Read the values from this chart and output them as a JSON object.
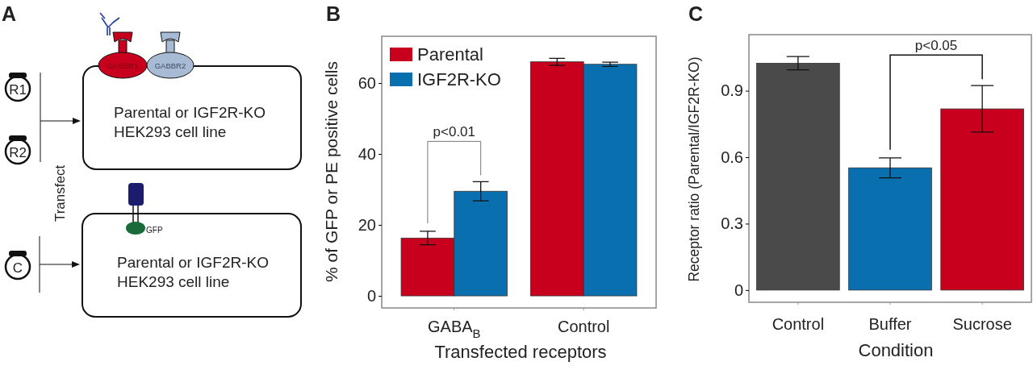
{
  "chart_data": [
    {
      "type": "other",
      "title": "A",
      "annotations": [
        "GABBR1",
        "GABBR2",
        "R1",
        "R2",
        "C",
        "Transfect",
        "Parental or IGF2R-KO",
        "HEK293 cell line",
        "GFP",
        "Parental or IGF2R-KO",
        "HEK293 cell line"
      ]
    },
    {
      "type": "bar",
      "title": "B",
      "xlabel": "Transfected receptors",
      "ylabel": "% of GFP or PE positive cells",
      "categories": [
        "GABA$_{B}$",
        "Control"
      ],
      "ylim": [
        -3.4,
        73.2
      ],
      "yticks": [
        0,
        20,
        40,
        60
      ],
      "legend": "top left",
      "annotations": [
        "p<0.01"
      ],
      "series": [
        {
          "name": "Parental",
          "color": "#c8001e",
          "values": [
            16.3,
            66.0
          ],
          "errors": [
            1.9,
            1.0
          ]
        },
        {
          "name": "IGF2R-KO",
          "color": "#0a6fae",
          "values": [
            29.5,
            65.3
          ],
          "errors": [
            2.7,
            0.6
          ]
        }
      ]
    },
    {
      "type": "bar",
      "title": "C",
      "xlabel": "Condition",
      "ylabel": "Receptor ratio (Parental/IGF2R-KO)",
      "categories": [
        "Control",
        "Buffer",
        "Sucrose"
      ],
      "ylim": [
        -0.055,
        1.153
      ],
      "yticks": [
        0,
        0.3,
        0.6,
        0.9
      ],
      "annotations": [
        "p<0.05"
      ],
      "values": [
        1.024,
        0.552,
        0.818
      ],
      "errors": [
        0.03,
        0.045,
        0.105
      ],
      "colors": [
        "#4a4a4a",
        "#0a6fae",
        "#c8001e"
      ]
    }
  ]
}
